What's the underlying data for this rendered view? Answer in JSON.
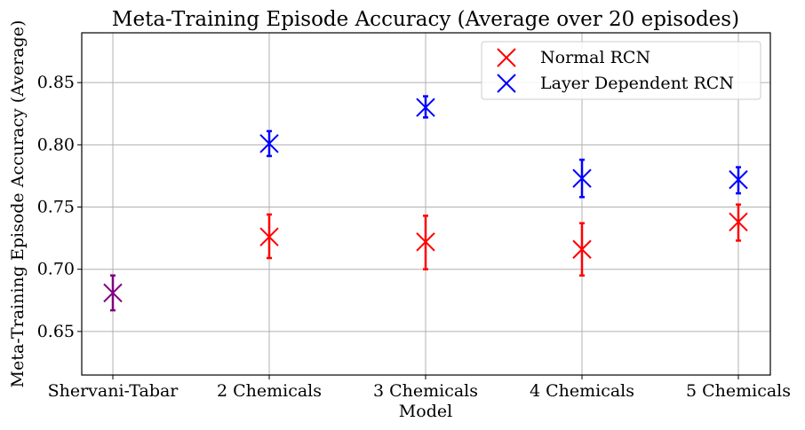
{
  "chart_data": {
    "type": "scatter",
    "title": "Meta-Training Episode Accuracy (Average over 20 episodes)",
    "xlabel": "Model",
    "ylabel": "Meta-Training Episode Accuracy (Average)",
    "categories": [
      "Shervani-Tabar",
      "2 Chemicals",
      "3 Chemicals",
      "4 Chemicals",
      "5 Chemicals"
    ],
    "ylim": [
      0.615,
      0.89
    ],
    "yticks": [
      0.65,
      0.7,
      0.75,
      0.8,
      0.85
    ],
    "ytick_labels": [
      "0.65",
      "0.70",
      "0.75",
      "0.80",
      "0.85"
    ],
    "grid": true,
    "legend_position": "top-right",
    "baseline": {
      "category": "Shervani-Tabar",
      "value": 0.681,
      "err_low": 0.667,
      "err_high": 0.695,
      "color": "#800080"
    },
    "series": [
      {
        "name": "Normal RCN",
        "color": "#ff0000",
        "points": [
          {
            "category": "2 Chemicals",
            "value": 0.726,
            "err_low": 0.709,
            "err_high": 0.744
          },
          {
            "category": "3 Chemicals",
            "value": 0.722,
            "err_low": 0.7,
            "err_high": 0.743
          },
          {
            "category": "4 Chemicals",
            "value": 0.716,
            "err_low": 0.695,
            "err_high": 0.737
          },
          {
            "category": "5 Chemicals",
            "value": 0.738,
            "err_low": 0.723,
            "err_high": 0.752
          }
        ]
      },
      {
        "name": "Layer Dependent RCN",
        "color": "#0000ff",
        "points": [
          {
            "category": "2 Chemicals",
            "value": 0.801,
            "err_low": 0.791,
            "err_high": 0.811
          },
          {
            "category": "3 Chemicals",
            "value": 0.83,
            "err_low": 0.822,
            "err_high": 0.839
          },
          {
            "category": "4 Chemicals",
            "value": 0.773,
            "err_low": 0.758,
            "err_high": 0.788
          },
          {
            "category": "5 Chemicals",
            "value": 0.772,
            "err_low": 0.761,
            "err_high": 0.782
          }
        ]
      }
    ]
  }
}
